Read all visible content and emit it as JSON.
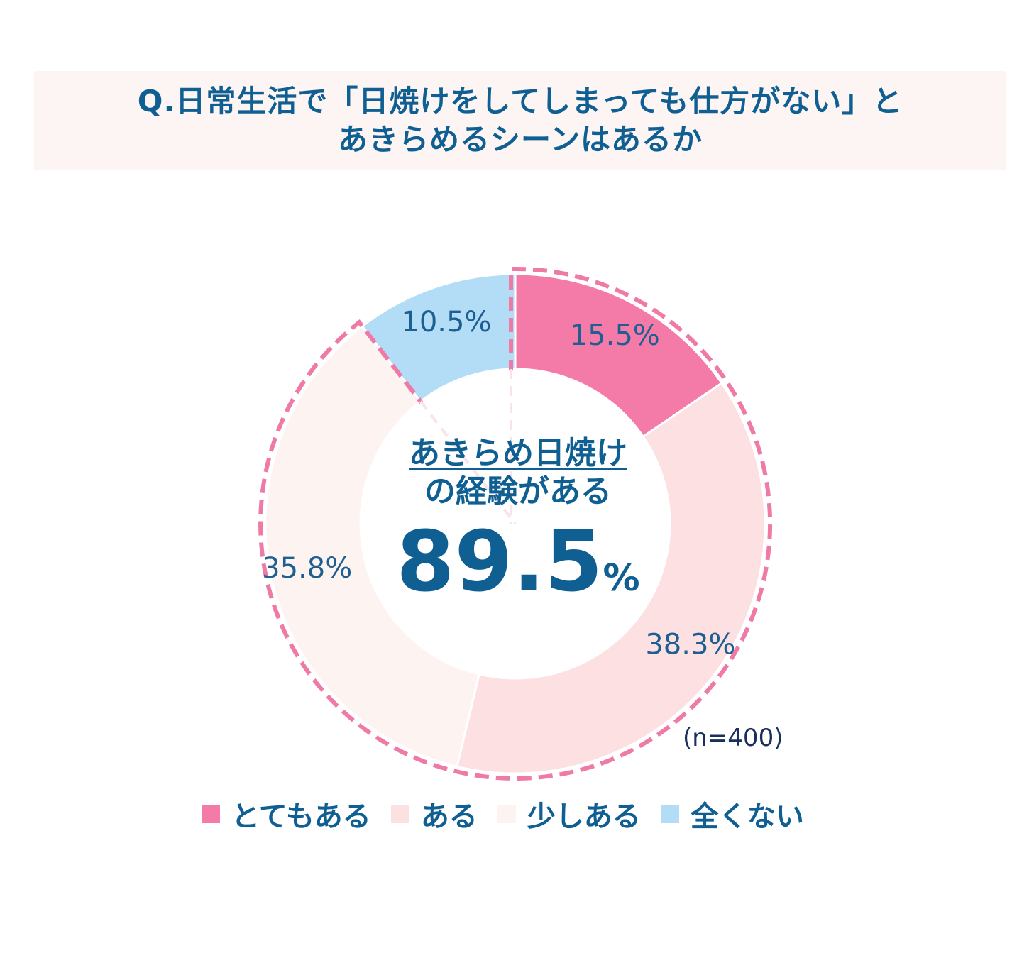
{
  "title": {
    "line1": "Q.日常生活で「日焼けをしてしまっても仕方がない」と",
    "line2": "あきらめるシーンはあるか"
  },
  "center": {
    "line1": "あきらめ日焼け",
    "line2": "の経験がある",
    "value": "89.5",
    "unit": "%"
  },
  "sample": "(n=400)",
  "colors": {
    "accent": "#0f5f93",
    "dash": "#f07aa6"
  },
  "chart_data": {
    "type": "pie",
    "categories": [
      "とてもある",
      "ある",
      "少しある",
      "全くない"
    ],
    "values": [
      15.5,
      38.3,
      35.8,
      10.5
    ],
    "labels": [
      "15.5%",
      "38.3%",
      "35.8%",
      "10.5%"
    ],
    "colors": [
      "#f47aa8",
      "#fde0e1",
      "#fdf4f2",
      "#b3dcf7"
    ],
    "highlight_total": 89.5,
    "legend": "bottom"
  }
}
